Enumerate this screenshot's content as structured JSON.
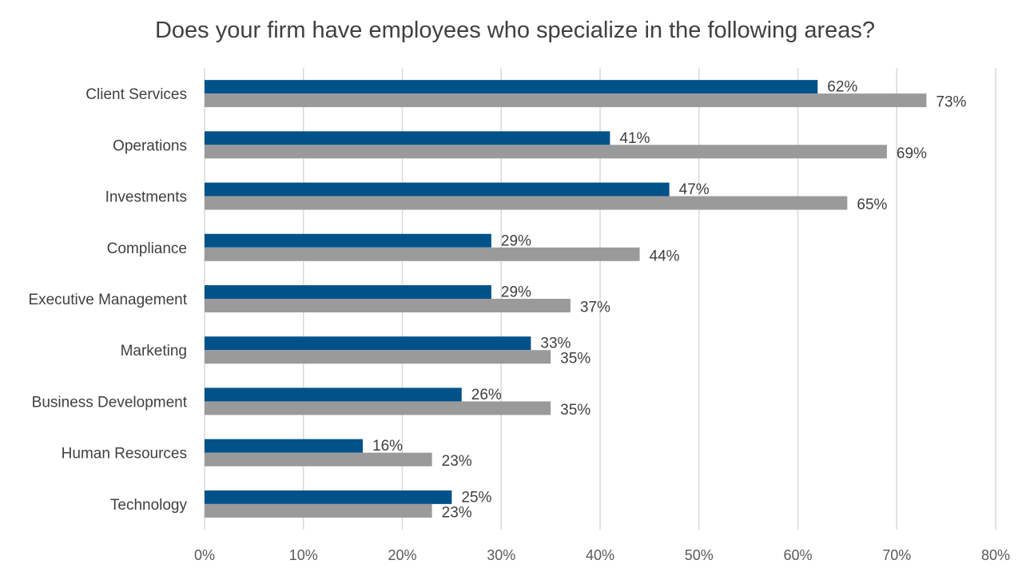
{
  "chart_data": {
    "type": "bar",
    "orientation": "horizontal",
    "title": "Does your firm have employees who specialize in the following areas?",
    "categories": [
      "Client Services",
      "Operations",
      "Investments",
      "Compliance",
      "Executive Management",
      "Marketing",
      "Business Development",
      "Human Resources",
      "Technology"
    ],
    "series": [
      {
        "values": [
          62,
          41,
          47,
          29,
          29,
          33,
          26,
          16,
          25
        ],
        "color": "#02528A"
      },
      {
        "values": [
          73,
          69,
          65,
          44,
          37,
          35,
          35,
          23,
          23
        ],
        "color": "#9A9A9A"
      }
    ],
    "value_format": "percent",
    "xlim": [
      0,
      80
    ],
    "x_ticks": [
      0,
      10,
      20,
      30,
      40,
      50,
      60,
      70,
      80
    ],
    "x_tick_labels": [
      "0%",
      "10%",
      "20%",
      "30%",
      "40%",
      "50%",
      "60%",
      "70%",
      "80%"
    ],
    "grid": true,
    "legend": "none"
  }
}
